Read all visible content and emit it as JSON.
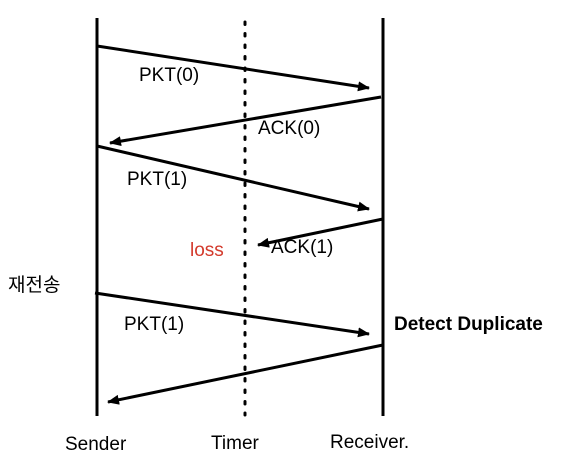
{
  "lanes": {
    "sender": "Sender",
    "timer": "Timer",
    "receiver": "Receiver."
  },
  "messages": {
    "pkt0": "PKT(0)",
    "ack0": "ACK(0)",
    "pkt1": "PKT(1)",
    "ack1": "ACK(1)",
    "pkt1_retx": "PKT(1)"
  },
  "annotations": {
    "loss": "loss",
    "retransmit": "재전송",
    "detect_duplicate": "Detect Duplicate"
  },
  "colors": {
    "line": "#000000",
    "loss": "#d33a2c"
  }
}
